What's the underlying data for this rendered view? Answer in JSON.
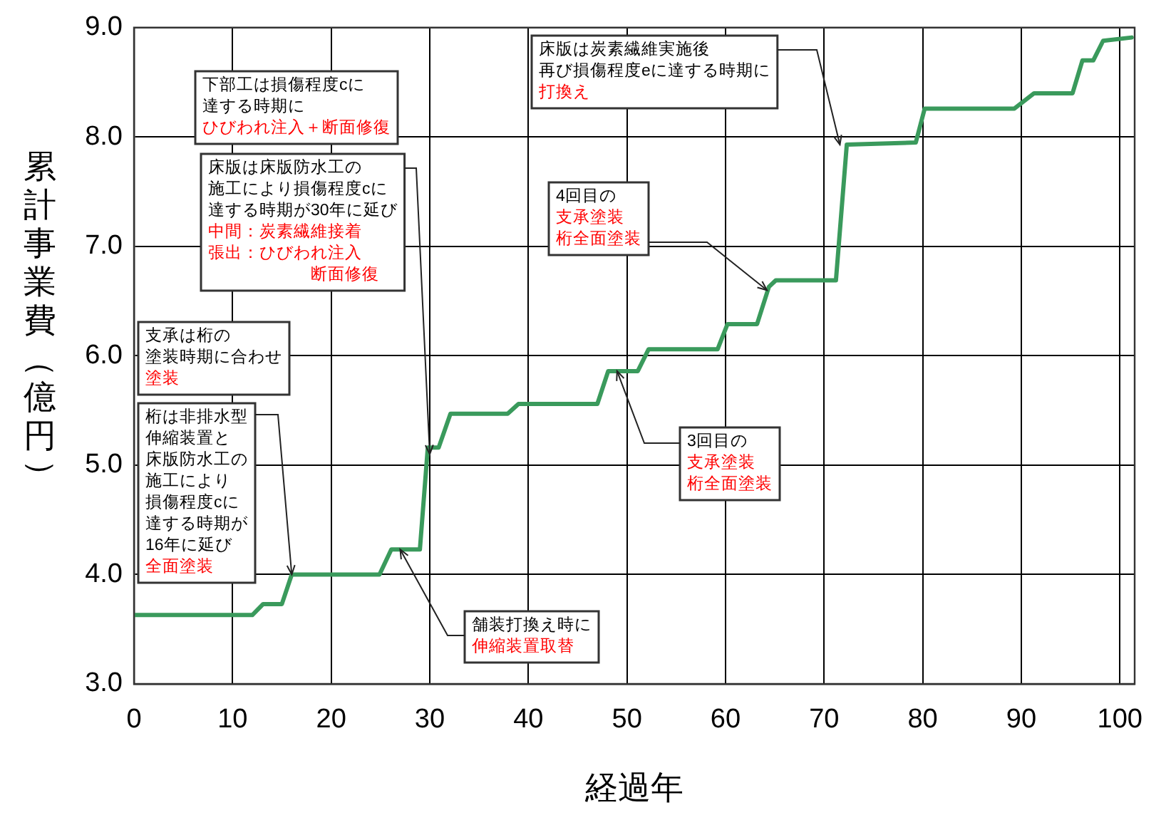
{
  "chart_data": {
    "type": "line",
    "xlabel": "経過年",
    "ylabel": "累計事業費（億円）",
    "x": [
      0,
      12.0,
      13.1,
      15.0,
      16.0,
      24.9,
      26.1,
      29.0,
      29.8,
      30.9,
      32.1,
      37.9,
      39.0,
      47.0,
      48.1,
      51.1,
      52.2,
      59.2,
      60.2,
      63.2,
      64.4,
      65.1,
      71.2,
      72.3,
      79.3,
      80.2,
      89.3,
      91.3,
      95.2,
      96.2,
      97.3,
      98.3,
      101.2
    ],
    "series": [
      {
        "color": "#3a9a5c",
        "values": [
          3.63,
          3.63,
          3.73,
          3.73,
          4.0,
          4.0,
          4.23,
          4.23,
          5.16,
          5.16,
          5.47,
          5.47,
          5.56,
          5.56,
          5.86,
          5.86,
          6.06,
          6.06,
          6.29,
          6.29,
          6.63,
          6.69,
          6.69,
          7.93,
          7.95,
          8.26,
          8.26,
          8.4,
          8.4,
          8.7,
          8.7,
          8.88,
          8.91
        ]
      }
    ],
    "xlim": [
      0,
      101.5
    ],
    "xticks": [
      0,
      10,
      20,
      30,
      40,
      50,
      60,
      70,
      80,
      90,
      100
    ],
    "ylim": [
      3,
      9
    ],
    "yticks": [
      {
        "value": 3,
        "label": "3.0"
      },
      {
        "value": 4,
        "label": "4.0"
      },
      {
        "value": 5,
        "label": "5.0"
      },
      {
        "value": 6,
        "label": "6.0"
      },
      {
        "value": 7,
        "label": "7.0"
      },
      {
        "value": 8,
        "label": "8.0"
      },
      {
        "value": 9,
        "label": "9.0"
      }
    ],
    "grid": true,
    "legend": false,
    "marker": "none",
    "line_style": "solid",
    "annotations": [
      "下部工は損傷程度cに達する時期に",
      "ひびわれ注入＋断面修復",
      {
        "text": "床版は床版防水工の施工により損傷程度cに達する時期が30年に延び",
        "x": 30,
        "y": 5.1
      },
      "中間：炭素繊維接着",
      "張出：ひびわれ注入断面修復",
      "支承は桁の塗装時期に合わせ",
      "塗装",
      {
        "text": "桁は非排水型伸縮装置と床版防水工の施工により損傷程度cに達する時期が16年に延び",
        "x": 16,
        "y": 4.0
      },
      "全面塗装",
      {
        "text": "舗装打換え時に",
        "x": 27,
        "y": 4.23
      },
      "伸縮装置取替",
      {
        "text": "3回目の",
        "x": 49,
        "y": 5.86
      },
      "支承塗装",
      "桁全面塗装",
      "4回目の",
      "支承塗装",
      {
        "text": "桁全面塗装",
        "x": 64.2,
        "y": 6.6
      },
      {
        "text": "床版は炭素繊維実施後再び損傷程度eに達する時期に",
        "x": 71.6,
        "y": 7.93
      },
      "打換え"
    ]
  }
}
